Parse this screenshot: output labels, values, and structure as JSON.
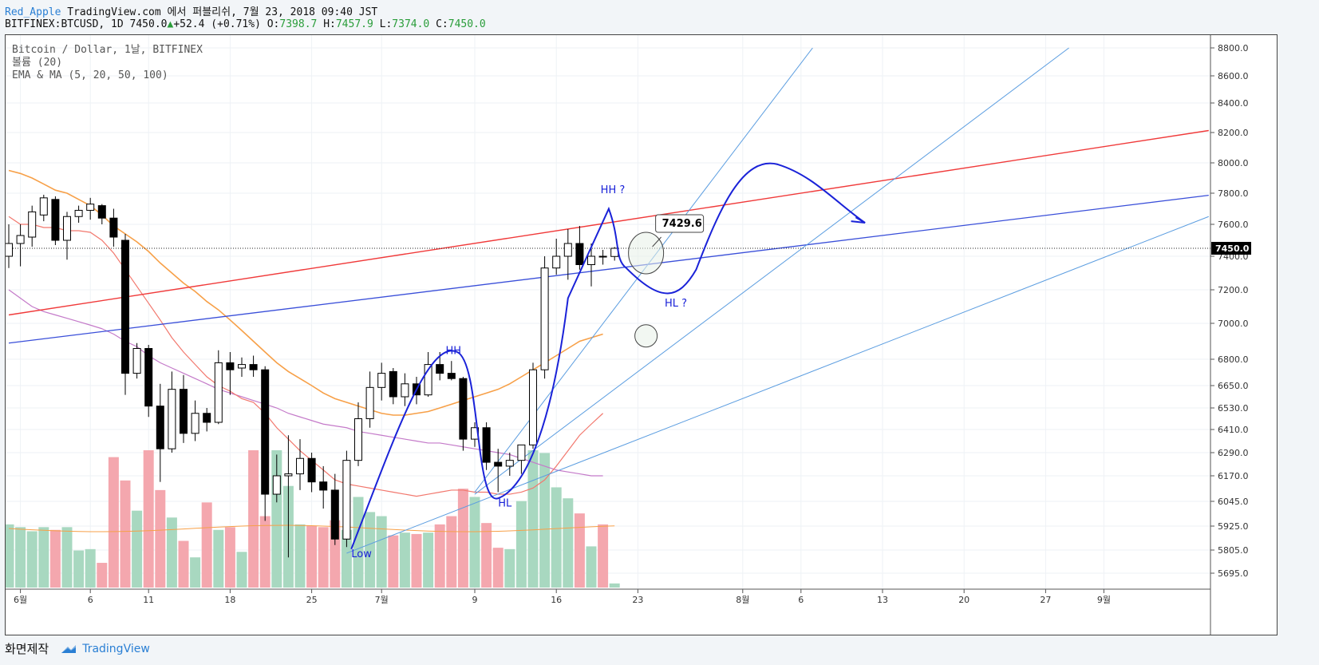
{
  "header": {
    "user": "Red_Apple",
    "published": "TradingView.com 에서 퍼블리쉬, 7월 23, 2018 09:40 JST",
    "symbol": "BITFINEX:BTCUSD, 1D 7450.0",
    "change_arrow": "▲",
    "change": "+52.4 (+0.71%)",
    "o_label": "O:",
    "o_value": "7398.7",
    "h_label": "H:",
    "h_value": "7457.9",
    "l_label": "L:",
    "l_value": "7374.0",
    "c_label": "C:",
    "c_value": "7450.0"
  },
  "legend": {
    "line1": "Bitcoin / Dollar, 1날, BITFINEX",
    "line2": "볼륨 (20)",
    "line3": "EMA & MA (5, 20, 50, 100)"
  },
  "footer": {
    "made_with": "화면제작",
    "brand": "TradingView"
  },
  "colors": {
    "up": "#ffffff",
    "down": "#000000",
    "vol_up": "#a8d8c0",
    "vol_down": "#f4a7ae",
    "ema_orange": "#f7a048",
    "ema_red": "#f2786e",
    "ma_purple": "#c47ac9",
    "red_line": "#f03a3a",
    "blue_line": "#3a4fd9",
    "light_blue": "#5b9de0",
    "drawing": "#1a22d8"
  },
  "chart_data": {
    "type": "candlestick",
    "price_axis": {
      "ticks": [
        8800,
        8600,
        8400,
        8200,
        8000,
        7800,
        7600,
        7400,
        7200,
        7000,
        6800,
        6650,
        6530,
        6410,
        6290,
        6170,
        6045,
        5925,
        5805,
        5695
      ],
      "last_price": 7450.0
    },
    "time_axis": {
      "labels": [
        {
          "slot": 1,
          "text": "6월"
        },
        {
          "slot": 7,
          "text": "6"
        },
        {
          "slot": 12,
          "text": "11"
        },
        {
          "slot": 19,
          "text": "18"
        },
        {
          "slot": 26,
          "text": "25"
        },
        {
          "slot": 32,
          "text": "7월"
        },
        {
          "slot": 40,
          "text": "9"
        },
        {
          "slot": 47,
          "text": "16"
        },
        {
          "slot": 54,
          "text": "23"
        },
        {
          "slot": 63,
          "text": "8월"
        },
        {
          "slot": 68,
          "text": "6"
        },
        {
          "slot": 75,
          "text": "13"
        },
        {
          "slot": 82,
          "text": "20"
        },
        {
          "slot": 89,
          "text": "27"
        },
        {
          "slot": 94,
          "text": "9월"
        }
      ]
    },
    "candles": [
      {
        "o": 7400,
        "h": 7600,
        "l": 7330,
        "c": 7480
      },
      {
        "o": 7480,
        "h": 7600,
        "l": 7340,
        "c": 7530
      },
      {
        "o": 7520,
        "h": 7720,
        "l": 7460,
        "c": 7680
      },
      {
        "o": 7660,
        "h": 7790,
        "l": 7620,
        "c": 7770
      },
      {
        "o": 7760,
        "h": 7780,
        "l": 7470,
        "c": 7500
      },
      {
        "o": 7500,
        "h": 7680,
        "l": 7380,
        "c": 7650
      },
      {
        "o": 7650,
        "h": 7720,
        "l": 7610,
        "c": 7690
      },
      {
        "o": 7690,
        "h": 7770,
        "l": 7630,
        "c": 7730
      },
      {
        "o": 7720,
        "h": 7730,
        "l": 7600,
        "c": 7640
      },
      {
        "o": 7640,
        "h": 7700,
        "l": 7460,
        "c": 7520
      },
      {
        "o": 7500,
        "h": 7540,
        "l": 6600,
        "c": 6720
      },
      {
        "o": 6720,
        "h": 6890,
        "l": 6690,
        "c": 6860
      },
      {
        "o": 6860,
        "h": 6880,
        "l": 6480,
        "c": 6540
      },
      {
        "o": 6540,
        "h": 6660,
        "l": 6140,
        "c": 6310
      },
      {
        "o": 6310,
        "h": 6730,
        "l": 6290,
        "c": 6630
      },
      {
        "o": 6630,
        "h": 6710,
        "l": 6340,
        "c": 6390
      },
      {
        "o": 6390,
        "h": 6570,
        "l": 6350,
        "c": 6500
      },
      {
        "o": 6500,
        "h": 6530,
        "l": 6400,
        "c": 6450
      },
      {
        "o": 6450,
        "h": 6850,
        "l": 6440,
        "c": 6780
      },
      {
        "o": 6780,
        "h": 6840,
        "l": 6600,
        "c": 6740
      },
      {
        "o": 6750,
        "h": 6810,
        "l": 6700,
        "c": 6770
      },
      {
        "o": 6770,
        "h": 6820,
        "l": 6700,
        "c": 6740
      },
      {
        "o": 6740,
        "h": 6760,
        "l": 5950,
        "c": 6080
      },
      {
        "o": 6080,
        "h": 6280,
        "l": 6040,
        "c": 6170
      },
      {
        "o": 6170,
        "h": 6380,
        "l": 5770,
        "c": 6180
      },
      {
        "o": 6180,
        "h": 6360,
        "l": 6100,
        "c": 6260
      },
      {
        "o": 6260,
        "h": 6290,
        "l": 6090,
        "c": 6140
      },
      {
        "o": 6140,
        "h": 6220,
        "l": 6010,
        "c": 6100
      },
      {
        "o": 6100,
        "h": 6180,
        "l": 5830,
        "c": 5860
      },
      {
        "o": 5860,
        "h": 6300,
        "l": 5820,
        "c": 6250
      },
      {
        "o": 6250,
        "h": 6560,
        "l": 6220,
        "c": 6470
      },
      {
        "o": 6470,
        "h": 6730,
        "l": 6420,
        "c": 6640
      },
      {
        "o": 6640,
        "h": 6780,
        "l": 6570,
        "c": 6720
      },
      {
        "o": 6730,
        "h": 6750,
        "l": 6550,
        "c": 6590
      },
      {
        "o": 6590,
        "h": 6720,
        "l": 6540,
        "c": 6660
      },
      {
        "o": 6660,
        "h": 6700,
        "l": 6550,
        "c": 6600
      },
      {
        "o": 6600,
        "h": 6840,
        "l": 6590,
        "c": 6770
      },
      {
        "o": 6770,
        "h": 6840,
        "l": 6680,
        "c": 6720
      },
      {
        "o": 6720,
        "h": 6790,
        "l": 6680,
        "c": 6690
      },
      {
        "o": 6690,
        "h": 6700,
        "l": 6300,
        "c": 6360
      },
      {
        "o": 6360,
        "h": 6450,
        "l": 6320,
        "c": 6420
      },
      {
        "o": 6420,
        "h": 6450,
        "l": 6200,
        "c": 6240
      },
      {
        "o": 6240,
        "h": 6310,
        "l": 6090,
        "c": 6220
      },
      {
        "o": 6220,
        "h": 6290,
        "l": 6170,
        "c": 6250
      },
      {
        "o": 6250,
        "h": 6320,
        "l": 6180,
        "c": 6330
      },
      {
        "o": 6330,
        "h": 6780,
        "l": 6310,
        "c": 6740
      },
      {
        "o": 6740,
        "h": 7400,
        "l": 6690,
        "c": 7330
      },
      {
        "o": 7330,
        "h": 7510,
        "l": 7290,
        "c": 7400
      },
      {
        "o": 7400,
        "h": 7570,
        "l": 7260,
        "c": 7480
      },
      {
        "o": 7480,
        "h": 7590,
        "l": 7320,
        "c": 7350
      },
      {
        "o": 7350,
        "h": 7480,
        "l": 7220,
        "c": 7400
      },
      {
        "o": 7400,
        "h": 7440,
        "l": 7350,
        "c": 7398
      },
      {
        "o": 7398.7,
        "h": 7457.9,
        "l": 7374,
        "c": 7450
      }
    ],
    "volume_levels": [
      0.46,
      0.44,
      0.41,
      0.44,
      0.42,
      0.44,
      0.27,
      0.28,
      0.18,
      0.95,
      0.78,
      0.56,
      1.0,
      0.71,
      0.51,
      0.34,
      0.22,
      0.62,
      0.42,
      0.44,
      0.26,
      1.0,
      0.52,
      1.0,
      0.74,
      0.46,
      0.45,
      0.44,
      0.49,
      0.42,
      0.66,
      0.55,
      0.52,
      0.38,
      0.4,
      0.39,
      0.4,
      0.46,
      0.52,
      0.72,
      0.66,
      0.47,
      0.29,
      0.28,
      0.63,
      1.0,
      0.98,
      0.73,
      0.65,
      0.54,
      0.3,
      0.46,
      0.03
    ],
    "ema_orange": [
      7950,
      7930,
      7900,
      7860,
      7820,
      7800,
      7760,
      7720,
      7660,
      7590,
      7540,
      7490,
      7430,
      7360,
      7300,
      7240,
      7190,
      7130,
      7080,
      7020,
      6960,
      6900,
      6840,
      6780,
      6730,
      6690,
      6650,
      6610,
      6580,
      6560,
      6540,
      6520,
      6500,
      6490,
      6490,
      6500,
      6510,
      6530,
      6550,
      6570,
      6590,
      6610,
      6630,
      6660,
      6700,
      6740,
      6780,
      6820,
      6860,
      6900,
      6920,
      6940
    ],
    "ma_purple": [
      7200,
      7150,
      7100,
      7070,
      7050,
      7030,
      7010,
      6990,
      6970,
      6940,
      6900,
      6870,
      6820,
      6780,
      6750,
      6720,
      6690,
      6660,
      6630,
      6610,
      6590,
      6570,
      6550,
      6530,
      6500,
      6480,
      6460,
      6440,
      6430,
      6420,
      6400,
      6390,
      6380,
      6370,
      6360,
      6350,
      6340,
      6340,
      6330,
      6320,
      6310,
      6300,
      6290,
      6280,
      6260,
      6240,
      6220,
      6200,
      6190,
      6180,
      6170,
      6170
    ],
    "ema_red": [
      7650,
      7600,
      7600,
      7580,
      7580,
      7560,
      7560,
      7550,
      7500,
      7420,
      7320,
      7220,
      7120,
      7020,
      6920,
      6840,
      6770,
      6700,
      6650,
      6620,
      6580,
      6560,
      6500,
      6420,
      6360,
      6300,
      6250,
      6200,
      6150,
      6130,
      6120,
      6110,
      6100,
      6090,
      6080,
      6070,
      6080,
      6090,
      6100,
      6100,
      6090,
      6090,
      6080,
      6080,
      6090,
      6110,
      6150,
      6220,
      6300,
      6380,
      6440,
      6500
    ]
  },
  "annotations": {
    "price_label": "7429.6",
    "hh_label": "HH",
    "hh_q_label": "HH ?",
    "hl_label": "HL",
    "hl_q_label": "HL ?",
    "low_label": "Low"
  }
}
